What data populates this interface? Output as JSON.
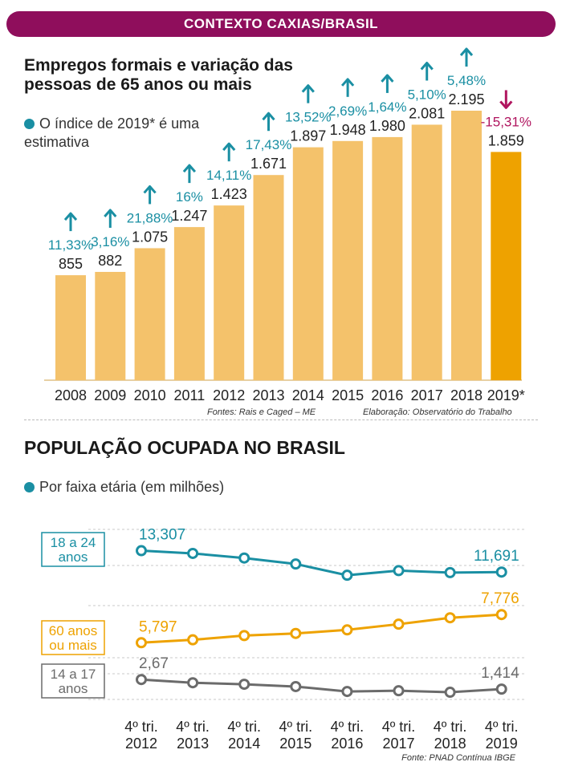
{
  "banner": "CONTEXTO CAXIAS/BRASIL",
  "section1": {
    "title": "Empregos formais e variação das pessoas de 65 anos ou mais",
    "note": "O índice de 2019* é uma estimativa",
    "source": "Fontes: Rais e Caged – ME",
    "elaboration": "Elaboração: Observatório do Trabalho"
  },
  "section2": {
    "title": "POPULAÇÃO OCUPADA NO BRASIL",
    "note": "Por faixa etária (em milhões)",
    "source": "Fonte: PNAD Contínua IBGE"
  },
  "colors": {
    "banner": "#8f0e5c",
    "bar": "#f4c26b",
    "bar_highlight": "#eea200",
    "teal": "#1a8fa3",
    "negative": "#b0155f",
    "orange": "#eea200",
    "gray": "#6b6b6b"
  },
  "chart_data": [
    {
      "type": "bar",
      "title": "Empregos formais e variação das pessoas de 65 anos ou mais",
      "categories": [
        "2008",
        "2009",
        "2010",
        "2011",
        "2012",
        "2013",
        "2014",
        "2015",
        "2016",
        "2017",
        "2018",
        "2019*"
      ],
      "values": [
        855,
        882,
        1075,
        1247,
        1423,
        1671,
        1897,
        1948,
        1980,
        2081,
        2195,
        1859
      ],
      "value_labels": [
        "855",
        "882",
        "1.075",
        "1.247",
        "1.423",
        "1.671",
        "1.897",
        "1.948",
        "1.980",
        "2.081",
        "2.195",
        "1.859"
      ],
      "variation_labels": [
        "11,33%",
        "3,16%",
        "21,88%",
        "16%",
        "14,11%",
        "17,43%",
        "13,52%",
        "2,69%",
        "1,64%",
        "5,10%",
        "5,48%",
        "-15,31%"
      ],
      "variation_direction": [
        "up",
        "up",
        "up",
        "up",
        "up",
        "up",
        "up",
        "up",
        "up",
        "up",
        "up",
        "down"
      ],
      "highlight_index": 11,
      "ylim": [
        0,
        2195
      ]
    },
    {
      "type": "line",
      "title": "POPULAÇÃO OCUPADA NO BRASIL",
      "subtitle": "Por faixa etária (em milhões)",
      "x": [
        "4º tri. 2012",
        "4º tri. 2013",
        "4º tri. 2014",
        "4º tri. 2015",
        "4º tri. 2016",
        "4º tri. 2017",
        "4º tri. 2018",
        "4º tri. 2019"
      ],
      "x_line1": "4º tri.",
      "x_years": [
        "2012",
        "2013",
        "2014",
        "2015",
        "2016",
        "2017",
        "2018",
        "2019"
      ],
      "series": [
        {
          "name": "18 a 24 anos",
          "label_lines": [
            "18 a 24",
            "anos"
          ],
          "color": "#1a8fa3",
          "values": [
            13.307,
            13.1,
            12.75,
            12.3,
            11.45,
            11.8,
            11.65,
            11.691
          ],
          "start_label": "13,307",
          "end_label": "11,691"
        },
        {
          "name": "60 anos ou mais",
          "label_lines": [
            "60 anos",
            "ou mais"
          ],
          "color": "#eea200",
          "values": [
            5.797,
            6.0,
            6.3,
            6.45,
            6.7,
            7.1,
            7.55,
            7.776
          ],
          "start_label": "5,797",
          "end_label": "7,776"
        },
        {
          "name": "14 a 17 anos",
          "label_lines": [
            "14 a 17",
            "anos"
          ],
          "color": "#6b6b6b",
          "values": [
            2.67,
            2.25,
            2.05,
            1.75,
            1.1,
            1.2,
            1.0,
            1.414
          ],
          "start_label": "2,67",
          "end_label": "1,414"
        }
      ]
    }
  ]
}
